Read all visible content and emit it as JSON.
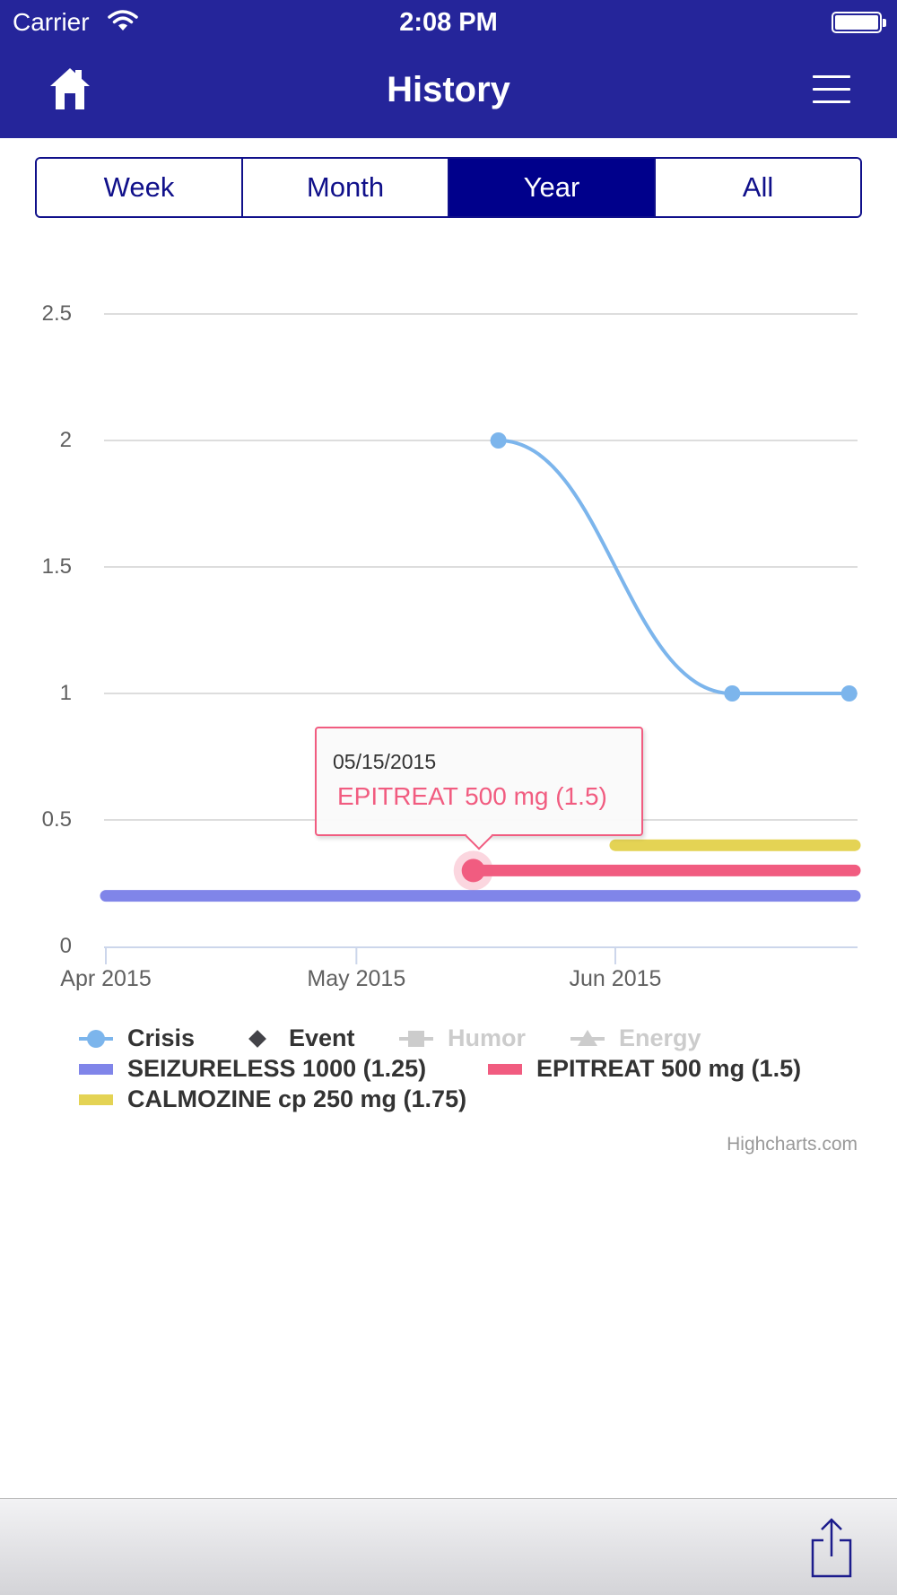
{
  "status_bar": {
    "carrier": "Carrier",
    "time": "2:08 PM"
  },
  "header": {
    "title": "History",
    "home_icon": "home-icon",
    "menu_icon": "hamburger-menu-icon"
  },
  "range_tabs": [
    {
      "label": "Week",
      "active": false
    },
    {
      "label": "Month",
      "active": false
    },
    {
      "label": "Year",
      "active": true
    },
    {
      "label": "All",
      "active": false
    }
  ],
  "chart_data": {
    "type": "line",
    "x_type": "datetime",
    "xlim": [
      "2015-04-01",
      "2015-06-30"
    ],
    "ylim": [
      0,
      2.5
    ],
    "y_ticks": [
      "0",
      "0.5",
      "1",
      "1.5",
      "2",
      "2.5"
    ],
    "x_ticks": [
      {
        "date": "2015-04-01",
        "label": "Apr 2015"
      },
      {
        "date": "2015-05-01",
        "label": "May 2015"
      },
      {
        "date": "2015-06-01",
        "label": "Jun 2015"
      }
    ],
    "grid": true,
    "legend_position": "bottom",
    "series": [
      {
        "name": "Crisis",
        "kind": "spline",
        "color": "#7cb5ec",
        "visible": true,
        "points": [
          {
            "x": "2015-05-18",
            "y": 2
          },
          {
            "x": "2015-06-15",
            "y": 1
          },
          {
            "x": "2015-06-29",
            "y": 1
          }
        ]
      },
      {
        "name": "Event",
        "kind": "marker",
        "color": "#434348",
        "visible": true,
        "points": []
      },
      {
        "name": "Humor",
        "kind": "marker",
        "color": "#cccccc",
        "visible": false,
        "points": []
      },
      {
        "name": "Energy",
        "kind": "marker",
        "color": "#cccccc",
        "visible": false,
        "points": []
      },
      {
        "name": "SEIZURELESS 1000 (1.25)",
        "kind": "band",
        "color": "#8085e9",
        "level": 0.2,
        "from": "2015-04-01",
        "to": "2015-06-30"
      },
      {
        "name": "EPITREAT 500 mg (1.5)",
        "kind": "band",
        "color": "#f15c80",
        "level": 0.3,
        "from": "2015-05-15",
        "to": "2015-06-30"
      },
      {
        "name": "CALMOZINE cp 250 mg (1.75)",
        "kind": "band",
        "color": "#e4d354",
        "level": 0.4,
        "from": "2015-06-01",
        "to": "2015-06-30"
      }
    ],
    "tooltip": {
      "date": "05/15/2015",
      "label": "EPITREAT 500 mg (1.5)",
      "series": "EPITREAT 500 mg (1.5)",
      "x": "2015-05-15",
      "y": 0.3
    },
    "credits": "Highcharts.com"
  },
  "toolbar": {
    "share_icon": "share-icon"
  }
}
